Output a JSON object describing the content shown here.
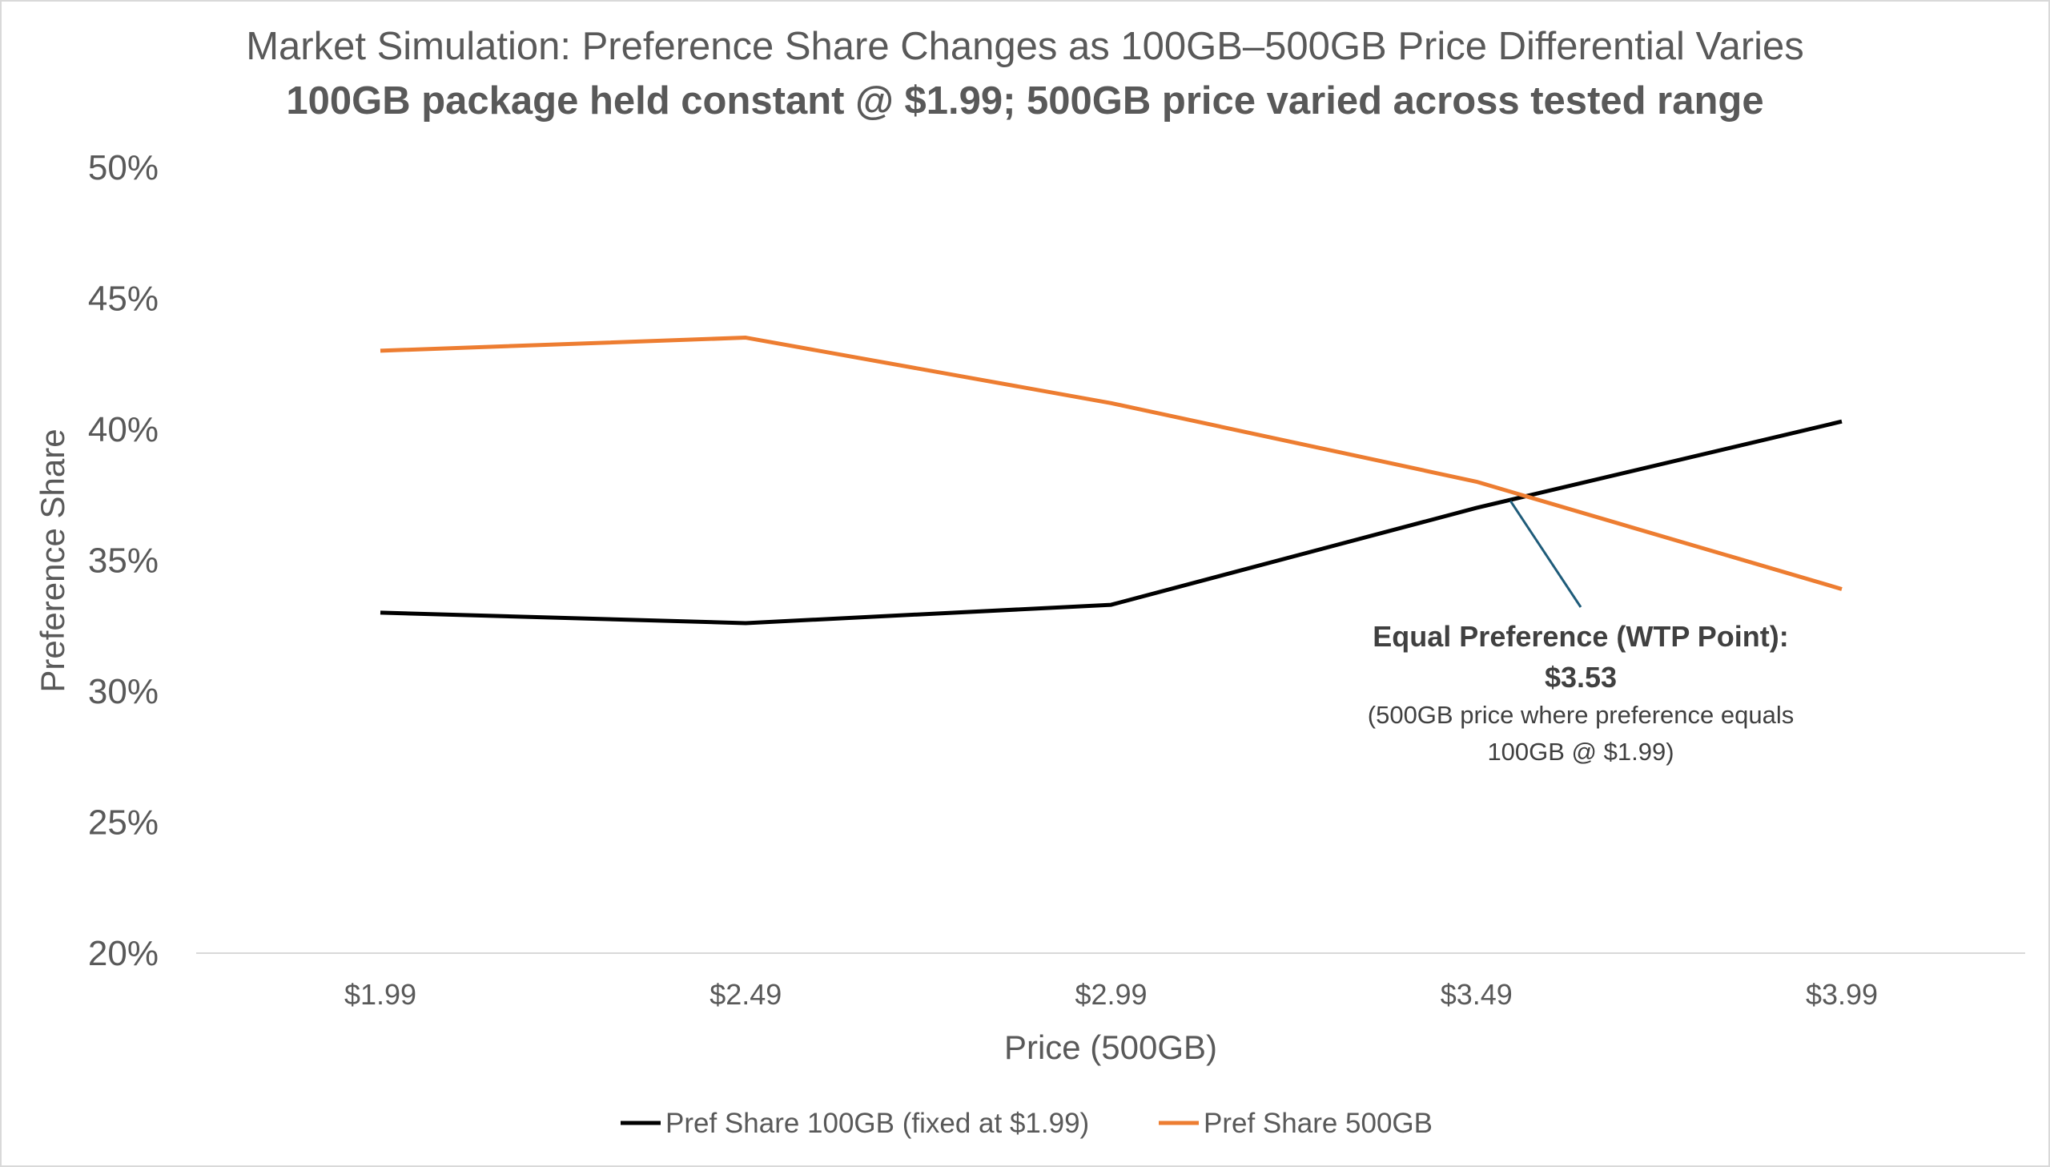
{
  "chart_data": {
    "type": "line",
    "title": "Market Simulation: Preference Share Changes as 100GB–500GB Price Differential Varies",
    "subtitle": "100GB package held constant @ $1.99; 500GB price varied across tested range",
    "xlabel": "Price (500GB)",
    "ylabel": "Preference Share",
    "categories": [
      "$1.99",
      "$2.49",
      "$2.99",
      "$3.49",
      "$3.99"
    ],
    "ylim": [
      20,
      50
    ],
    "yticks": [
      20,
      25,
      30,
      35,
      40,
      45,
      50
    ],
    "ytick_labels": [
      "20%",
      "25%",
      "30%",
      "35%",
      "40%",
      "45%",
      "50%"
    ],
    "grid": false,
    "legend_position": "bottom",
    "series": [
      {
        "name": "Pref Share 100GB (fixed at $1.99)",
        "color": "#000000",
        "values": [
          33.0,
          32.6,
          33.3,
          37.0,
          40.3
        ]
      },
      {
        "name": "Pref Share 500GB",
        "color": "#ED7D31",
        "values": [
          43.0,
          43.5,
          41.0,
          38.0,
          33.9
        ]
      }
    ],
    "annotation": {
      "title": "Equal Preference (WTP Point):",
      "value": "$3.53",
      "note_line1": "(500GB price where preference equals",
      "note_line2": "100GB @ $1.99)",
      "x_value": 3.53,
      "leader_color": "#1F5C7A"
    }
  }
}
